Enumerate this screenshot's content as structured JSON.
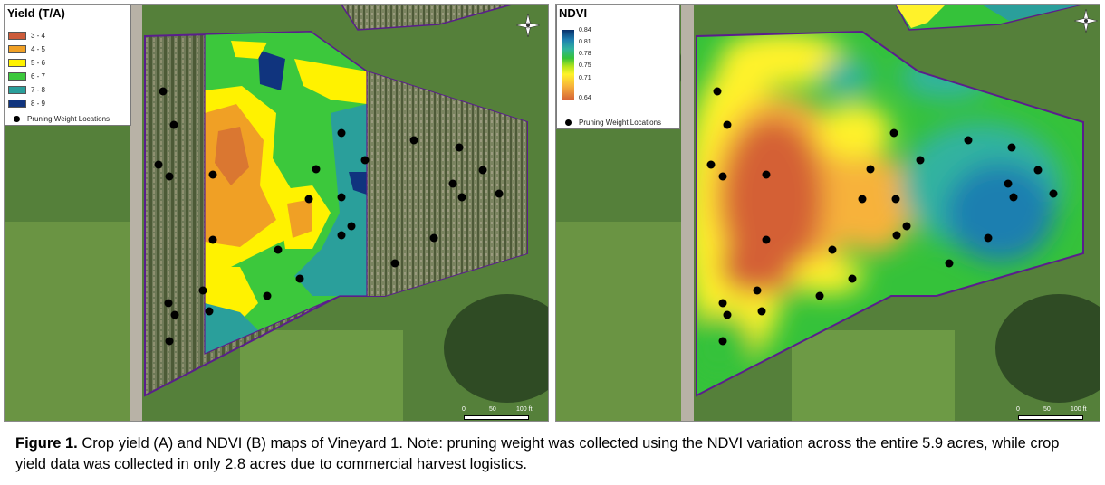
{
  "panel_a": {
    "legend": {
      "title": "Yield (T/A)",
      "classes": [
        {
          "label": "3 - 4",
          "color": "#cc5b3a"
        },
        {
          "label": "4 - 5",
          "color": "#f0a025"
        },
        {
          "label": "5 - 6",
          "color": "#fff200"
        },
        {
          "label": "6 - 7",
          "color": "#3cc83c"
        },
        {
          "label": "7 - 8",
          "color": "#2a9f9b"
        },
        {
          "label": "8 - 9",
          "color": "#10347e"
        }
      ],
      "points_label": "Pruning Weight Locations"
    },
    "north_arrow_icon": "north-arrow-icon",
    "scale_labels": [
      "0",
      "50",
      "100 ft"
    ]
  },
  "panel_b": {
    "legend": {
      "title": "NDVI",
      "ticks": [
        "0.84",
        "0.81",
        "0.78",
        "0.75",
        "0.71",
        "0.64"
      ],
      "points_label": "Pruning Weight Locations"
    },
    "north_arrow_icon": "north-arrow-icon",
    "scale_labels": [
      "0",
      "50",
      "100 ft"
    ]
  },
  "colors": {
    "field_boundary": "#5a1e8c",
    "road": "#b8b2a6",
    "grass": "#4f7a34",
    "pruning_point": "#000000"
  },
  "caption": {
    "label": "Figure 1.",
    "text": " Crop yield (A) and NDVI (B) maps of Vineyard 1.  Note: pruning weight was collected using the NDVI variation across the entire 5.9 acres, while crop yield data was collected in only 2.8 acres due to commercial harvest logistics."
  }
}
